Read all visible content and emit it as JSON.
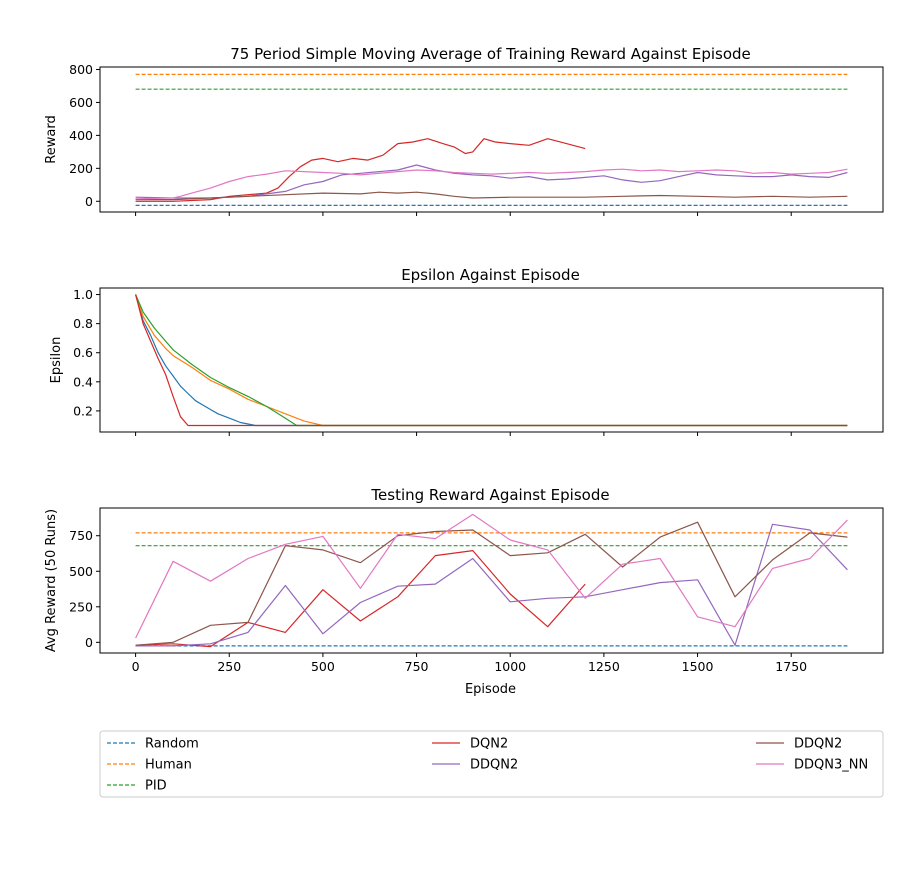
{
  "colors": {
    "Random": "#1f77b4",
    "Human": "#ff7f0e",
    "PID": "#2ca02c",
    "DQN2": "#d62728",
    "DDQN2_a": "#9467bd",
    "DDQN2_b": "#8c564b",
    "DDQN3_NN": "#e377c2"
  },
  "legend": {
    "items": [
      {
        "key": "Random",
        "label": "Random",
        "dashed": true
      },
      {
        "key": "Human",
        "label": "Human",
        "dashed": true
      },
      {
        "key": "PID",
        "label": "PID",
        "dashed": true
      },
      {
        "key": "DQN2",
        "label": "DQN2",
        "dashed": false
      },
      {
        "key": "DDQN2_a",
        "label": "DDQN2",
        "dashed": false
      },
      {
        "key": "DDQN2_b",
        "label": "DDQN2",
        "dashed": false
      },
      {
        "key": "DDQN3_NN",
        "label": "DDQN3_NN",
        "dashed": false
      }
    ]
  },
  "chart_data": [
    {
      "type": "line",
      "title": "75 Period Simple Moving Average of Training Reward Against Episode",
      "xlabel": "",
      "ylabel": "Reward",
      "xlim": [
        -95,
        1995
      ],
      "ylim": [
        -65,
        815
      ],
      "xticks": [
        0,
        250,
        500,
        750,
        1000,
        1250,
        1500,
        1750
      ],
      "show_xticklabels": false,
      "yticks": [
        0,
        200,
        400,
        600,
        800
      ],
      "series": [
        {
          "key": "Random",
          "dashed": true,
          "x": [
            0,
            1900
          ],
          "y": [
            -25,
            -25
          ]
        },
        {
          "key": "Human",
          "dashed": true,
          "x": [
            0,
            1900
          ],
          "y": [
            770,
            770
          ]
        },
        {
          "key": "PID",
          "dashed": true,
          "x": [
            0,
            1900
          ],
          "y": [
            680,
            680
          ]
        },
        {
          "key": "DQN2",
          "dashed": false,
          "x": [
            0,
            100,
            200,
            250,
            300,
            350,
            380,
            410,
            440,
            470,
            500,
            540,
            580,
            620,
            660,
            700,
            740,
            780,
            820,
            850,
            880,
            900,
            930,
            960,
            1000,
            1050,
            1100,
            1150,
            1200
          ],
          "y": [
            0,
            0,
            10,
            30,
            40,
            50,
            80,
            150,
            210,
            250,
            260,
            240,
            260,
            250,
            280,
            350,
            360,
            380,
            350,
            330,
            290,
            300,
            380,
            360,
            350,
            340,
            380,
            350,
            320
          ]
        },
        {
          "key": "DDQN2_a",
          "dashed": false,
          "x": [
            0,
            100,
            200,
            300,
            400,
            450,
            500,
            550,
            600,
            650,
            700,
            750,
            800,
            850,
            900,
            950,
            1000,
            1050,
            1100,
            1150,
            1200,
            1250,
            1300,
            1350,
            1400,
            1450,
            1500,
            1550,
            1600,
            1650,
            1700,
            1750,
            1800,
            1850,
            1900
          ],
          "y": [
            25,
            20,
            20,
            30,
            60,
            100,
            120,
            160,
            170,
            180,
            190,
            220,
            190,
            170,
            160,
            155,
            140,
            150,
            130,
            135,
            145,
            155,
            130,
            115,
            125,
            150,
            175,
            160,
            155,
            150,
            150,
            160,
            150,
            145,
            175
          ]
        },
        {
          "key": "DDQN2_b",
          "dashed": false,
          "x": [
            0,
            100,
            200,
            300,
            400,
            500,
            600,
            650,
            700,
            750,
            800,
            850,
            900,
            1000,
            1100,
            1200,
            1300,
            1400,
            1500,
            1600,
            1700,
            1800,
            1900
          ],
          "y": [
            10,
            10,
            20,
            30,
            40,
            50,
            45,
            55,
            50,
            55,
            45,
            30,
            20,
            25,
            25,
            25,
            30,
            35,
            30,
            25,
            30,
            25,
            30
          ]
        },
        {
          "key": "DDQN3_NN",
          "dashed": false,
          "x": [
            0,
            100,
            120,
            150,
            200,
            250,
            300,
            350,
            400,
            450,
            500,
            550,
            600,
            650,
            700,
            750,
            800,
            850,
            900,
            950,
            1000,
            1050,
            1100,
            1150,
            1200,
            1250,
            1300,
            1350,
            1400,
            1450,
            1500,
            1550,
            1600,
            1650,
            1700,
            1750,
            1800,
            1850,
            1900
          ],
          "y": [
            15,
            20,
            30,
            50,
            80,
            120,
            150,
            165,
            185,
            180,
            175,
            170,
            160,
            170,
            180,
            190,
            185,
            175,
            170,
            165,
            170,
            175,
            170,
            175,
            180,
            190,
            195,
            185,
            190,
            180,
            185,
            190,
            185,
            170,
            175,
            165,
            170,
            175,
            195
          ]
        }
      ]
    },
    {
      "type": "line",
      "title": "Epsilon Against Episode",
      "xlabel": "",
      "ylabel": "Epsilon",
      "xlim": [
        -95,
        1995
      ],
      "ylim": [
        0.055,
        1.045
      ],
      "xticks": [
        0,
        250,
        500,
        750,
        1000,
        1250,
        1500,
        1750
      ],
      "show_xticklabels": false,
      "yticks": [
        0.2,
        0.4,
        0.6,
        0.8,
        1.0
      ],
      "series": [
        {
          "key": "Random",
          "dashed": false,
          "x": [
            0,
            20,
            40,
            60,
            80,
            100,
            120,
            140,
            160,
            180,
            200,
            220,
            240,
            260,
            280,
            300,
            320,
            1900
          ],
          "y": [
            1.0,
            0.82,
            0.72,
            0.6,
            0.51,
            0.44,
            0.37,
            0.32,
            0.27,
            0.24,
            0.21,
            0.18,
            0.16,
            0.14,
            0.12,
            0.11,
            0.1,
            0.1
          ]
        },
        {
          "key": "Human",
          "dashed": false,
          "x": [
            0,
            20,
            50,
            80,
            100,
            150,
            200,
            250,
            300,
            350,
            400,
            450,
            500,
            1900
          ],
          "y": [
            1.0,
            0.85,
            0.72,
            0.63,
            0.58,
            0.5,
            0.41,
            0.35,
            0.28,
            0.23,
            0.18,
            0.13,
            0.1,
            0.1
          ]
        },
        {
          "key": "PID",
          "dashed": false,
          "x": [
            0,
            20,
            50,
            80,
            100,
            150,
            200,
            250,
            300,
            350,
            400,
            430,
            1900
          ],
          "y": [
            1.0,
            0.88,
            0.77,
            0.68,
            0.62,
            0.52,
            0.43,
            0.36,
            0.3,
            0.23,
            0.15,
            0.1,
            0.1
          ]
        },
        {
          "key": "DQN2",
          "dashed": false,
          "x": [
            0,
            20,
            40,
            60,
            80,
            100,
            120,
            140,
            160,
            1900
          ],
          "y": [
            1.0,
            0.8,
            0.68,
            0.56,
            0.45,
            0.3,
            0.16,
            0.1,
            0.1,
            0.1
          ]
        }
      ]
    },
    {
      "type": "line",
      "title": "Testing Reward Against Episode",
      "xlabel": "Episode",
      "ylabel": "Avg Reward (50 Runs)",
      "xlim": [
        -95,
        1995
      ],
      "ylim": [
        -75,
        945
      ],
      "xticks": [
        0,
        250,
        500,
        750,
        1000,
        1250,
        1500,
        1750
      ],
      "show_xticklabels": true,
      "yticks": [
        0,
        250,
        500,
        750
      ],
      "series": [
        {
          "key": "Random",
          "dashed": true,
          "x": [
            0,
            1900
          ],
          "y": [
            -25,
            -25
          ]
        },
        {
          "key": "Human",
          "dashed": true,
          "x": [
            0,
            1900
          ],
          "y": [
            770,
            770
          ]
        },
        {
          "key": "PID",
          "dashed": true,
          "x": [
            0,
            1900
          ],
          "y": [
            680,
            680
          ]
        },
        {
          "key": "DQN2",
          "dashed": false,
          "x": [
            0,
            100,
            200,
            300,
            400,
            500,
            600,
            700,
            800,
            900,
            1000,
            1100,
            1200
          ],
          "y": [
            -20,
            -10,
            -30,
            140,
            70,
            370,
            150,
            320,
            610,
            645,
            340,
            110,
            410
          ]
        },
        {
          "key": "DDQN2_a",
          "dashed": false,
          "x": [
            0,
            100,
            200,
            300,
            400,
            500,
            600,
            700,
            800,
            900,
            1000,
            1100,
            1200,
            1300,
            1400,
            1500,
            1600,
            1700,
            1800,
            1900
          ],
          "y": [
            -25,
            -25,
            -10,
            70,
            400,
            60,
            280,
            395,
            410,
            590,
            285,
            310,
            320,
            370,
            420,
            440,
            -20,
            830,
            790,
            510
          ]
        },
        {
          "key": "DDQN2_b",
          "dashed": false,
          "x": [
            0,
            100,
            200,
            300,
            400,
            500,
            600,
            700,
            800,
            900,
            1000,
            1100,
            1200,
            1300,
            1400,
            1500,
            1600,
            1700,
            1800,
            1900
          ],
          "y": [
            -20,
            0,
            120,
            140,
            680,
            650,
            560,
            750,
            780,
            790,
            610,
            630,
            760,
            530,
            740,
            845,
            320,
            580,
            770,
            740
          ]
        },
        {
          "key": "DDQN3_NN",
          "dashed": false,
          "x": [
            0,
            100,
            200,
            300,
            400,
            500,
            600,
            700,
            800,
            900,
            1000,
            1100,
            1200,
            1300,
            1400,
            1500,
            1600,
            1700,
            1800,
            1900
          ],
          "y": [
            30,
            570,
            430,
            590,
            690,
            745,
            380,
            760,
            730,
            900,
            720,
            650,
            310,
            550,
            590,
            180,
            110,
            520,
            590,
            860
          ]
        }
      ]
    }
  ]
}
